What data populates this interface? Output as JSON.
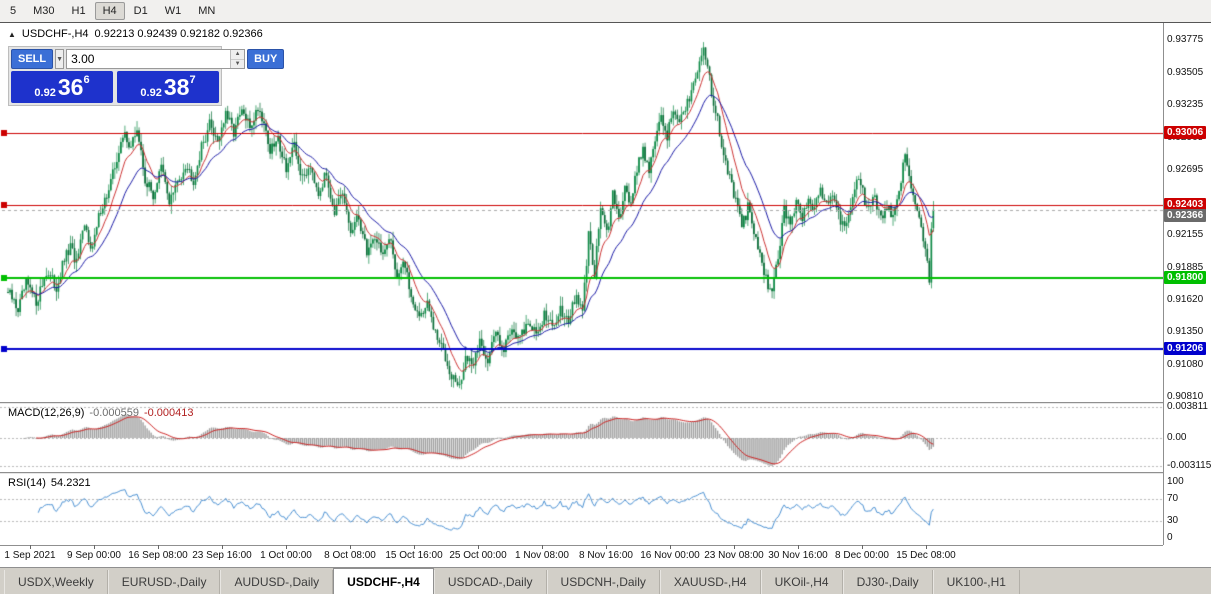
{
  "toolbar": {
    "timeframes": [
      {
        "label": "5",
        "active": false
      },
      {
        "label": "M30",
        "active": false
      },
      {
        "label": "H1",
        "active": false
      },
      {
        "label": "H4",
        "active": true
      },
      {
        "label": "D1",
        "active": false
      },
      {
        "label": "W1",
        "active": false
      },
      {
        "label": "MN",
        "active": false
      }
    ]
  },
  "icons": {
    "symbol_arrow": "▲",
    "dropdown_arrow": "▼",
    "spinner_up": "▲",
    "spinner_down": "▼"
  },
  "chart": {
    "symbol_title": "USDCHF-,H4",
    "ohlc": "0.92213 0.92439 0.92182 0.92366",
    "price_axis": {
      "ticks": [
        {
          "label": "0.93775",
          "value": 0.93775
        },
        {
          "label": "0.93505",
          "value": 0.93505
        },
        {
          "label": "0.93235",
          "value": 0.93235
        },
        {
          "label": "0.92965",
          "value": 0.92965
        },
        {
          "label": "0.92695",
          "value": 0.92695
        },
        {
          "label": "0.92425",
          "value": 0.92425
        },
        {
          "label": "0.92155",
          "value": 0.92155
        },
        {
          "label": "0.91885",
          "value": 0.91885
        },
        {
          "label": "0.91620",
          "value": 0.9162
        },
        {
          "label": "0.91350",
          "value": 0.9135
        },
        {
          "label": "0.91080",
          "value": 0.9108
        },
        {
          "label": "0.90810",
          "value": 0.9081
        }
      ]
    },
    "hlines": [
      {
        "label": "0.93006",
        "value": 0.93006,
        "color": "#cc0000",
        "width": 1
      },
      {
        "label": "0.92403",
        "value": 0.92403,
        "color": "#cc0000",
        "width": 1
      },
      {
        "label": "0.91800",
        "value": 0.918,
        "color": "#00bf00",
        "width": 2
      },
      {
        "label": "0.91206",
        "value": 0.91206,
        "color": "#0000cc",
        "width": 2
      }
    ],
    "bid": {
      "label": "0.92366",
      "value": 0.92366,
      "color": "#6a6a6a"
    }
  },
  "trade_panel": {
    "sell_label": "SELL",
    "buy_label": "BUY",
    "volume": "3.00",
    "sell_price": {
      "small": "0.92",
      "big": "36",
      "sup": "6"
    },
    "buy_price": {
      "small": "0.92",
      "big": "38",
      "sup": "7"
    }
  },
  "macd": {
    "name": "MACD(12,26,9)",
    "value_main": "-0.000559",
    "value_signal": "-0.000413",
    "ticks": [
      {
        "label": "0.003811",
        "value": 0.003811
      },
      {
        "label": "0.00",
        "value": 0
      },
      {
        "label": "-0.003115",
        "value": -0.003115
      }
    ]
  },
  "rsi": {
    "name": "RSI(14)",
    "value": "54.2321",
    "ticks": [
      {
        "label": "100",
        "value": 100
      },
      {
        "label": "70",
        "value": 70
      },
      {
        "label": "30",
        "value": 30
      },
      {
        "label": "0",
        "value": 0
      }
    ],
    "levels": [
      70,
      30
    ]
  },
  "date_axis": {
    "labels": [
      "1 Sep 2021",
      "9 Sep 00:00",
      "16 Sep 08:00",
      "23 Sep 16:00",
      "1 Oct 00:00",
      "8 Oct 08:00",
      "15 Oct 16:00",
      "25 Oct 00:00",
      "1 Nov 08:00",
      "8 Nov 16:00",
      "16 Nov 00:00",
      "23 Nov 08:00",
      "30 Nov 16:00",
      "8 Dec 00:00",
      "15 Dec 08:00"
    ]
  },
  "tabs": {
    "items": [
      {
        "label": "USDX,Weekly",
        "active": false
      },
      {
        "label": "EURUSD-,Daily",
        "active": false
      },
      {
        "label": "AUDUSD-,Daily",
        "active": false
      },
      {
        "label": "USDCHF-,H4",
        "active": true
      },
      {
        "label": "USDCAD-,Daily",
        "active": false
      },
      {
        "label": "USDCNH-,Daily",
        "active": false
      },
      {
        "label": "XAUUSD-,H4",
        "active": false
      },
      {
        "label": "UKOil-,H4",
        "active": false
      },
      {
        "label": "DJ30-,Daily",
        "active": false
      },
      {
        "label": "UK100-,H1",
        "active": false
      }
    ]
  },
  "chart_data": {
    "type": "candlestick",
    "symbol": "USDCHF-",
    "timeframe": "H4",
    "ohlc_current": {
      "open": 0.92213,
      "high": 0.92439,
      "low": 0.92182,
      "close": 0.92366
    },
    "y_range": [
      0.9081,
      0.93775
    ],
    "bars": 460,
    "noise_amp": 0.001,
    "ma_periods": [
      10,
      24
    ],
    "macd_params": [
      12,
      26,
      9
    ],
    "rsi_params": 14,
    "colors": {
      "up": "#0e8a46",
      "down": "#0a6d37",
      "ma_red": "#cc3333",
      "ma_blue": "#1a1aa6",
      "macd_hist": "#a0a0a0",
      "macd_signal": "#cc2222",
      "rsi_line": "#4a90d2",
      "level_dash": "#b8b8b8",
      "bid_dash": "#aaaaaa"
    },
    "close_path": [
      [
        0,
        0.9168
      ],
      [
        5,
        0.9154
      ],
      [
        9,
        0.9175
      ],
      [
        14,
        0.916
      ],
      [
        19,
        0.9185
      ],
      [
        24,
        0.9172
      ],
      [
        28,
        0.9195
      ],
      [
        31,
        0.9205
      ],
      [
        34,
        0.9192
      ],
      [
        38,
        0.9222
      ],
      [
        42,
        0.9205
      ],
      [
        46,
        0.9238
      ],
      [
        50,
        0.9252
      ],
      [
        54,
        0.928
      ],
      [
        58,
        0.93
      ],
      [
        61,
        0.9288
      ],
      [
        64,
        0.9304
      ],
      [
        68,
        0.9262
      ],
      [
        72,
        0.9248
      ],
      [
        76,
        0.9272
      ],
      [
        80,
        0.9244
      ],
      [
        84,
        0.9258
      ],
      [
        88,
        0.9275
      ],
      [
        92,
        0.9262
      ],
      [
        96,
        0.9288
      ],
      [
        100,
        0.9308
      ],
      [
        104,
        0.9295
      ],
      [
        108,
        0.9315
      ],
      [
        112,
        0.9302
      ],
      [
        116,
        0.9318
      ],
      [
        120,
        0.9305
      ],
      [
        124,
        0.9322
      ],
      [
        127,
        0.931
      ],
      [
        130,
        0.9285
      ],
      [
        134,
        0.9295
      ],
      [
        138,
        0.9272
      ],
      [
        142,
        0.9288
      ],
      [
        146,
        0.9262
      ],
      [
        150,
        0.9275
      ],
      [
        154,
        0.9252
      ],
      [
        158,
        0.9266
      ],
      [
        162,
        0.9235
      ],
      [
        166,
        0.9248
      ],
      [
        170,
        0.9218
      ],
      [
        174,
        0.923
      ],
      [
        178,
        0.9202
      ],
      [
        182,
        0.9215
      ],
      [
        186,
        0.92
      ],
      [
        190,
        0.921
      ],
      [
        193,
        0.9182
      ],
      [
        196,
        0.9195
      ],
      [
        200,
        0.9165
      ],
      [
        204,
        0.9148
      ],
      [
        208,
        0.9158
      ],
      [
        212,
        0.9132
      ],
      [
        216,
        0.912
      ],
      [
        220,
        0.91
      ],
      [
        224,
        0.9088
      ],
      [
        227,
        0.9115
      ],
      [
        230,
        0.9105
      ],
      [
        234,
        0.9128
      ],
      [
        238,
        0.9112
      ],
      [
        242,
        0.9135
      ],
      [
        246,
        0.9122
      ],
      [
        250,
        0.914
      ],
      [
        254,
        0.9128
      ],
      [
        258,
        0.9145
      ],
      [
        262,
        0.9132
      ],
      [
        266,
        0.915
      ],
      [
        270,
        0.9138
      ],
      [
        274,
        0.9155
      ],
      [
        278,
        0.9145
      ],
      [
        282,
        0.9165
      ],
      [
        285,
        0.915
      ],
      [
        288,
        0.9215
      ],
      [
        291,
        0.9185
      ],
      [
        294,
        0.924
      ],
      [
        297,
        0.9215
      ],
      [
        300,
        0.9248
      ],
      [
        303,
        0.9228
      ],
      [
        306,
        0.9258
      ],
      [
        309,
        0.924
      ],
      [
        312,
        0.9272
      ],
      [
        315,
        0.9288
      ],
      [
        318,
        0.927
      ],
      [
        321,
        0.9295
      ],
      [
        324,
        0.9312
      ],
      [
        327,
        0.9298
      ],
      [
        330,
        0.9322
      ],
      [
        333,
        0.9308
      ],
      [
        336,
        0.9318
      ],
      [
        339,
        0.9338
      ],
      [
        342,
        0.9355
      ],
      [
        345,
        0.937
      ],
      [
        347,
        0.936
      ],
      [
        349,
        0.9332
      ],
      [
        352,
        0.931
      ],
      [
        355,
        0.9285
      ],
      [
        358,
        0.9262
      ],
      [
        361,
        0.9242
      ],
      [
        364,
        0.9222
      ],
      [
        367,
        0.9238
      ],
      [
        370,
        0.9218
      ],
      [
        373,
        0.92
      ],
      [
        376,
        0.9178
      ],
      [
        379,
        0.917
      ],
      [
        382,
        0.9195
      ],
      [
        385,
        0.9238
      ],
      [
        388,
        0.9222
      ],
      [
        391,
        0.9245
      ],
      [
        394,
        0.9228
      ],
      [
        397,
        0.925
      ],
      [
        400,
        0.9235
      ],
      [
        403,
        0.9255
      ],
      [
        406,
        0.9242
      ],
      [
        409,
        0.925
      ],
      [
        412,
        0.9232
      ],
      [
        415,
        0.922
      ],
      [
        418,
        0.9242
      ],
      [
        421,
        0.9262
      ],
      [
        424,
        0.925
      ],
      [
        427,
        0.9235
      ],
      [
        430,
        0.9246
      ],
      [
        433,
        0.923
      ],
      [
        436,
        0.924
      ],
      [
        439,
        0.9228
      ],
      [
        442,
        0.9252
      ],
      [
        445,
        0.9282
      ],
      [
        448,
        0.9258
      ],
      [
        451,
        0.9235
      ],
      [
        454,
        0.9215
      ],
      [
        456,
        0.9192
      ],
      [
        457,
        0.918
      ],
      [
        458,
        0.9225
      ],
      [
        459,
        0.9237
      ]
    ]
  }
}
